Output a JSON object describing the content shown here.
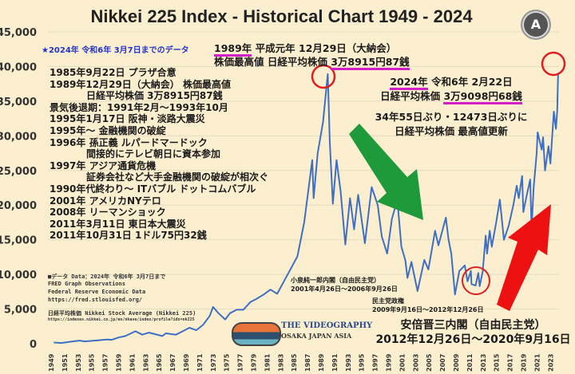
{
  "chart_data": {
    "type": "line",
    "title": "Nikkei 225 Index - Historical Chart 1949 - 2024",
    "xlim": [
      1949,
      2024.2
    ],
    "ylim": [
      0,
      45000
    ],
    "grid": true,
    "y_ticks": [
      0,
      5000,
      10000,
      15000,
      20000,
      25000,
      30000,
      35000,
      40000,
      45000
    ],
    "y_tick_labels": [
      "0",
      "5,000",
      "10,000",
      "15,000",
      "20,000",
      "25,000",
      "30,000",
      "35,000",
      "40,000",
      "45,000"
    ],
    "x_ticks": [
      1949,
      1951,
      1953,
      1955,
      1957,
      1959,
      1961,
      1963,
      1965,
      1967,
      1969,
      1971,
      1973,
      1975,
      1977,
      1979,
      1981,
      1983,
      1985,
      1987,
      1989,
      1991,
      1993,
      1995,
      1997,
      1999,
      2001,
      2003,
      2005,
      2007,
      2009,
      2011,
      2013,
      2015,
      2017,
      2019,
      2021,
      2023
    ],
    "series": [
      {
        "color": "#3f6fc4",
        "points": [
          [
            1949.4,
            176
          ],
          [
            1950.5,
            100
          ],
          [
            1952,
            300
          ],
          [
            1953.2,
            450
          ],
          [
            1954,
            330
          ],
          [
            1956,
            500
          ],
          [
            1957.3,
            600
          ],
          [
            1958,
            560
          ],
          [
            1959,
            900
          ],
          [
            1960,
            1100
          ],
          [
            1961.5,
            1800
          ],
          [
            1962.5,
            1300
          ],
          [
            1963.5,
            1600
          ],
          [
            1965.5,
            1100
          ],
          [
            1966,
            1500
          ],
          [
            1967.5,
            1300
          ],
          [
            1968.5,
            1800
          ],
          [
            1969.5,
            2300
          ],
          [
            1970.5,
            1950
          ],
          [
            1971.5,
            2700
          ],
          [
            1972.5,
            4000
          ],
          [
            1973,
            5300
          ],
          [
            1973.8,
            4400
          ],
          [
            1974.8,
            3500
          ],
          [
            1975.5,
            4400
          ],
          [
            1976.5,
            4900
          ],
          [
            1977.5,
            4900
          ],
          [
            1978.5,
            6000
          ],
          [
            1979.5,
            6500
          ],
          [
            1980.5,
            7100
          ],
          [
            1981.5,
            7800
          ],
          [
            1982.5,
            7200
          ],
          [
            1983.5,
            9000
          ],
          [
            1984.5,
            10800
          ],
          [
            1985.5,
            12600
          ],
          [
            1986.5,
            17500
          ],
          [
            1987.7,
            26500
          ],
          [
            1987.9,
            21000
          ],
          [
            1988.5,
            27500
          ],
          [
            1989.3,
            32000
          ],
          [
            1989.99,
            38915
          ],
          [
            1990.3,
            29000
          ],
          [
            1990.75,
            20200
          ],
          [
            1991.3,
            26500
          ],
          [
            1991.9,
            22000
          ],
          [
            1992.6,
            14300
          ],
          [
            1993.3,
            21000
          ],
          [
            1993.9,
            16500
          ],
          [
            1994.5,
            21500
          ],
          [
            1995.5,
            14500
          ],
          [
            1996.5,
            22600
          ],
          [
            1997.4,
            20000
          ],
          [
            1998,
            15500
          ],
          [
            1998.8,
            13000
          ],
          [
            1999.5,
            18000
          ],
          [
            2000.3,
            20800
          ],
          [
            2000.9,
            14000
          ],
          [
            2001.5,
            12000
          ],
          [
            2001.8,
            9500
          ],
          [
            2002.4,
            11800
          ],
          [
            2003.3,
            7600
          ],
          [
            2004.3,
            12100
          ],
          [
            2004.9,
            10700
          ],
          [
            2005.9,
            16300
          ],
          [
            2006.4,
            14200
          ],
          [
            2007.5,
            18200
          ],
          [
            2007.9,
            15000
          ],
          [
            2008.3,
            13000
          ],
          [
            2008.85,
            7100
          ],
          [
            2009.5,
            10500
          ],
          [
            2010.3,
            11300
          ],
          [
            2010.7,
            9000
          ],
          [
            2011.2,
            10500
          ],
          [
            2011.3,
            8600
          ],
          [
            2011.9,
            8400
          ],
          [
            2012.3,
            10200
          ],
          [
            2012.5,
            8300
          ],
          [
            2012.95,
            10400
          ],
          [
            2013.4,
            15600
          ],
          [
            2013.6,
            13000
          ],
          [
            2013.99,
            16300
          ],
          [
            2014.3,
            14000
          ],
          [
            2014.95,
            17500
          ],
          [
            2015.5,
            20800
          ],
          [
            2016.1,
            15000
          ],
          [
            2016.8,
            17000
          ],
          [
            2017.5,
            20000
          ],
          [
            2017.99,
            22800
          ],
          [
            2018.3,
            21000
          ],
          [
            2018.8,
            24200
          ],
          [
            2018.98,
            19000
          ],
          [
            2019.5,
            21500
          ],
          [
            2020,
            23700
          ],
          [
            2020.2,
            16500
          ],
          [
            2020.5,
            22500
          ],
          [
            2020.95,
            27500
          ],
          [
            2021.1,
            30500
          ],
          [
            2021.7,
            28000
          ],
          [
            2021.9,
            29800
          ],
          [
            2022.2,
            25000
          ],
          [
            2022.7,
            28500
          ],
          [
            2022.99,
            26000
          ],
          [
            2023.5,
            33500
          ],
          [
            2023.8,
            31000
          ],
          [
            2023.99,
            33500
          ],
          [
            2024.14,
            39098
          ]
        ]
      }
    ]
  },
  "header": {
    "data_note": "★2024年 令和6年 3月7日までのデータ",
    "logo_letter": "A"
  },
  "peak_1989": {
    "year": "1989年",
    "line1_rest": " 平成元年 12月29日（大納会）",
    "line2_prefix": "株価最高値 日経平均株価 ",
    "value": "3万8915円87銭"
  },
  "peak_2024": {
    "year": "2024年",
    "line1_rest": " 令和6年 2月22日",
    "line2_prefix": "日経平均株価 ",
    "value": "3万9098円68銭",
    "line3": "34年55日ぶり・12473日ぶりに",
    "line4": "日経平均株価 最高値更新"
  },
  "events": [
    "1985年9月22日 プラザ合意",
    "1989年12月29日（大納会） 株価最高値",
    "日経平均株価 3万8915円87銭",
    "景気後退期：1991年2月～1993年10月",
    "1995年1月17日 阪神・淡路大震災",
    "1995年～ 金融機関の破綻",
    "1996年 孫正義 ルパードマードック",
    "間接的にテレビ朝日に資本参加",
    "1997年 アジア通貨危機",
    "証券会社など大手金融機関の破綻が相次ぐ",
    "1990年代終わり～ ITバブル ドットコムバブル",
    "2001年 アメリカNYテロ",
    "2008年 リーマンショック",
    "2011年3月11日 東日本大震災",
    "2011年10月31日 1ドル75円32銭"
  ],
  "source": {
    "line1": "■データ Data：2024年 令和6年 3月7日まで",
    "line2": "FRED Graph Observations",
    "line3": "Federal Reserve Economic Data",
    "line4": "https://fred.stlouisfed.org/",
    "line5": "日経平均株価 Nikkei Stock Average (Nikkei 225)",
    "line6": "https://indexes.nikkei.co.jp/en/nkave/index/profile?idx=nk225"
  },
  "cabinets": {
    "koizumi_name": "小泉純一郎内閣（自由民主党）",
    "koizumi_dates": "2001年4月26日～2006年9月26日",
    "dpj_name": "民主党政権",
    "dpj_dates": "2009年9月16日～2012年12月26日",
    "abe_name": "安倍晋三内閣（自由民主党）",
    "abe_dates": "2012年12月26日～2020年9月16日"
  },
  "watermark": {
    "line1": "THE VIDEOGRAPHY",
    "line2": "OSAKA JAPAN ASIA"
  },
  "colors": {
    "line": "#3f6fc4",
    "circle": "#dd1f1f",
    "down_arrow": "#1e9a3a",
    "up_arrow": "#ee1111",
    "underline": "#d21fc8",
    "background": "#fcefcf"
  }
}
